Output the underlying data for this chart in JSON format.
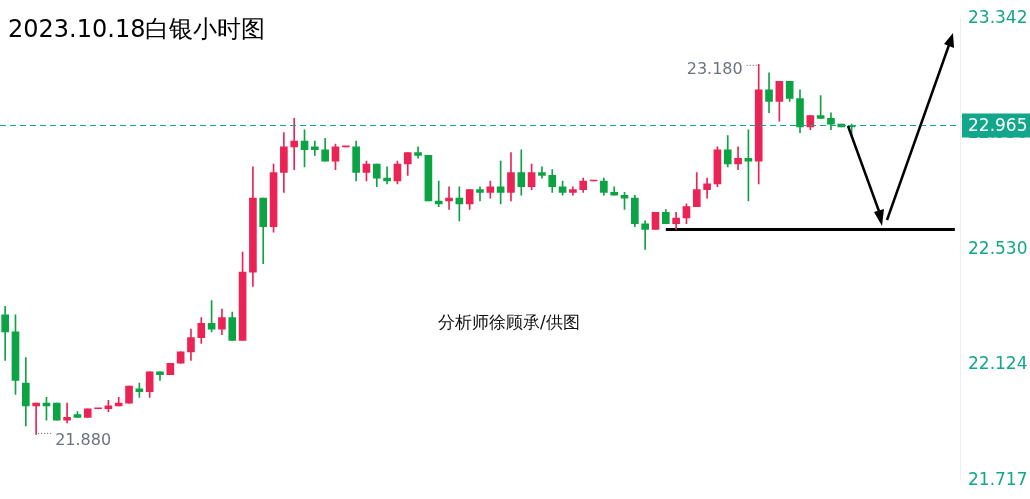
{
  "chart_data": {
    "type": "candlestick",
    "title": "2023.10.18白银小时图",
    "categories": [
      null,
      null,
      null,
      null,
      null,
      null,
      null,
      null,
      null,
      null,
      null,
      null,
      null,
      null,
      null,
      null,
      null,
      null,
      null,
      null,
      null,
      null,
      null,
      null,
      null,
      null,
      null,
      null,
      null,
      null,
      null,
      null,
      null,
      null,
      null,
      null,
      null,
      null,
      null,
      null,
      null,
      null,
      null,
      null,
      null,
      null,
      null,
      null,
      null,
      null,
      null,
      null,
      null,
      null,
      null,
      null,
      null,
      null,
      null,
      null,
      null,
      null,
      null,
      null,
      null,
      null,
      null,
      null,
      null,
      null,
      null,
      null,
      null,
      null,
      null,
      null,
      null,
      null,
      null,
      null,
      null,
      null,
      null,
      null,
      null,
      null,
      null,
      null,
      null,
      null,
      null,
      null,
      null
    ],
    "ohlc": [
      [
        22.3,
        22.33,
        22.14,
        22.24
      ],
      [
        22.24,
        22.3,
        22.02,
        22.07
      ],
      [
        22.06,
        22.15,
        21.91,
        21.98
      ],
      [
        21.98,
        21.99,
        21.88,
        21.99
      ],
      [
        21.99,
        22.01,
        21.93,
        21.98
      ],
      [
        21.99,
        21.99,
        21.93,
        21.93
      ],
      [
        21.93,
        21.99,
        21.92,
        21.94
      ],
      [
        21.95,
        21.96,
        21.94,
        21.94
      ],
      [
        21.94,
        21.97,
        21.94,
        21.97
      ],
      [
        21.97,
        21.97,
        21.97,
        21.97
      ],
      [
        21.97,
        22.0,
        21.96,
        21.98
      ],
      [
        21.98,
        22.01,
        21.98,
        21.99
      ],
      [
        21.99,
        22.05,
        21.99,
        22.05
      ],
      [
        22.04,
        22.06,
        22.01,
        22.03
      ],
      [
        22.03,
        22.1,
        22.01,
        22.1
      ],
      [
        22.1,
        22.1,
        22.07,
        22.09
      ],
      [
        22.09,
        22.13,
        22.09,
        22.13
      ],
      [
        22.13,
        22.17,
        22.13,
        22.17
      ],
      [
        22.17,
        22.25,
        22.14,
        22.22
      ],
      [
        22.22,
        22.29,
        22.2,
        22.27
      ],
      [
        22.27,
        22.35,
        22.24,
        22.25
      ],
      [
        22.25,
        22.32,
        22.23,
        22.29
      ],
      [
        22.29,
        22.31,
        22.21,
        22.21
      ],
      [
        22.21,
        22.52,
        22.21,
        22.45
      ],
      [
        22.45,
        22.82,
        22.4,
        22.71
      ],
      [
        22.71,
        22.71,
        22.48,
        22.61
      ],
      [
        22.61,
        22.83,
        22.59,
        22.8
      ],
      [
        22.8,
        22.94,
        22.73,
        22.89
      ],
      [
        22.89,
        22.99,
        22.81,
        22.91
      ],
      [
        22.91,
        22.95,
        22.82,
        22.88
      ],
      [
        22.89,
        22.91,
        22.86,
        22.88
      ],
      [
        22.88,
        22.92,
        22.84,
        22.84
      ],
      [
        22.84,
        22.9,
        22.81,
        22.89
      ],
      [
        22.89,
        22.89,
        22.89,
        22.89
      ],
      [
        22.89,
        22.91,
        22.77,
        22.8
      ],
      [
        22.8,
        22.84,
        22.77,
        22.83
      ],
      [
        22.83,
        22.83,
        22.75,
        22.78
      ],
      [
        22.78,
        22.82,
        22.76,
        22.77
      ],
      [
        22.77,
        22.84,
        22.76,
        22.83
      ],
      [
        22.83,
        22.87,
        22.79,
        22.87
      ],
      [
        22.87,
        22.89,
        22.85,
        22.86
      ],
      [
        22.86,
        22.86,
        22.7,
        22.7
      ],
      [
        22.7,
        22.77,
        22.68,
        22.69
      ],
      [
        22.7,
        22.75,
        22.67,
        22.71
      ],
      [
        22.71,
        22.75,
        22.63,
        22.69
      ],
      [
        22.69,
        22.74,
        22.67,
        22.74
      ],
      [
        22.74,
        22.75,
        22.7,
        22.73
      ],
      [
        22.73,
        22.77,
        22.71,
        22.75
      ],
      [
        22.75,
        22.84,
        22.69,
        22.73
      ],
      [
        22.73,
        22.87,
        22.7,
        22.8
      ],
      [
        22.8,
        22.88,
        22.72,
        22.75
      ],
      [
        22.75,
        22.83,
        22.74,
        22.8
      ],
      [
        22.8,
        22.82,
        22.78,
        22.79
      ],
      [
        22.79,
        22.81,
        22.73,
        22.75
      ],
      [
        22.75,
        22.77,
        22.72,
        22.73
      ],
      [
        22.73,
        22.75,
        22.72,
        22.74
      ],
      [
        22.74,
        22.78,
        22.73,
        22.77
      ],
      [
        22.77,
        22.77,
        22.77,
        22.77
      ],
      [
        22.77,
        22.78,
        22.72,
        22.73
      ],
      [
        22.73,
        22.75,
        22.72,
        22.72
      ],
      [
        22.72,
        22.73,
        22.67,
        22.71
      ],
      [
        22.71,
        22.72,
        22.61,
        22.62
      ],
      [
        22.62,
        22.63,
        22.53,
        22.6
      ],
      [
        22.6,
        22.66,
        22.6,
        22.66
      ],
      [
        22.66,
        22.67,
        22.62,
        22.62
      ],
      [
        22.62,
        22.66,
        22.6,
        22.64
      ],
      [
        22.64,
        22.69,
        22.62,
        22.68
      ],
      [
        22.68,
        22.8,
        22.68,
        22.74
      ],
      [
        22.74,
        22.78,
        22.71,
        22.76
      ],
      [
        22.76,
        22.89,
        22.75,
        22.88
      ],
      [
        22.88,
        22.93,
        22.82,
        22.83
      ],
      [
        22.83,
        22.89,
        22.81,
        22.85
      ],
      [
        22.85,
        22.95,
        22.7,
        22.84
      ],
      [
        22.84,
        23.18,
        22.76,
        23.09
      ],
      [
        23.09,
        23.15,
        23.01,
        23.05
      ],
      [
        23.05,
        23.12,
        22.98,
        23.12
      ],
      [
        23.12,
        23.12,
        23.05,
        23.06
      ],
      [
        23.06,
        23.09,
        22.94,
        22.96
      ],
      [
        22.96,
        23.0,
        22.95,
        23.0
      ],
      [
        23.0,
        23.07,
        22.99,
        22.99
      ],
      [
        22.99,
        23.01,
        22.95,
        22.97
      ],
      [
        22.97,
        22.97,
        22.96,
        22.96
      ],
      [
        22.96,
        22.97,
        22.93,
        22.965
      ],
      null,
      null,
      null,
      null,
      null,
      null,
      null,
      null,
      null,
      null
    ],
    "colors": [
      "#0ca345",
      "#0ca345",
      "#0ca345",
      "#eb2456",
      "#0ca345",
      "#0ca345",
      "#eb2456",
      "#0ca345",
      "#eb2456",
      "#eb2456",
      "#eb2456",
      "#eb2456",
      "#eb2456",
      "#0ca345",
      "#eb2456",
      "#0ca345",
      "#eb2456",
      "#eb2456",
      "#eb2456",
      "#eb2456",
      "#0ca345",
      "#eb2456",
      "#0ca345",
      "#eb2456",
      "#eb2456",
      "#0ca345",
      "#eb2456",
      "#eb2456",
      "#eb2456",
      "#0ca345",
      "#0ca345",
      "#0ca345",
      "#eb2456",
      "#eb2456",
      "#0ca345",
      "#eb2456",
      "#0ca345",
      "#0ca345",
      "#eb2456",
      "#eb2456",
      "#0ca345",
      "#0ca345",
      "#0ca345",
      "#eb2456",
      "#0ca345",
      "#eb2456",
      "#0ca345",
      "#eb2456",
      "#0ca345",
      "#eb2456",
      "#0ca345",
      "#eb2456",
      "#0ca345",
      "#0ca345",
      "#0ca345",
      "#eb2456",
      "#eb2456",
      "#eb2456",
      "#0ca345",
      "#0ca345",
      "#0ca345",
      "#0ca345",
      "#0ca345",
      "#eb2456",
      "#0ca345",
      "#eb2456",
      "#eb2456",
      "#eb2456",
      "#eb2456",
      "#eb2456",
      "#0ca345",
      "#eb2456",
      "#0ca345",
      "#eb2456",
      "#0ca345",
      "#eb2456",
      "#0ca345",
      "#0ca345",
      "#eb2456",
      "#0ca345",
      "#0ca345",
      "#0ca345",
      "#0ca345",
      null,
      null,
      null,
      null,
      null,
      null,
      null,
      null,
      null,
      null
    ],
    "series": [
      {
        "type": "line",
        "color": "#000000",
        "values": [
          null,
          null,
          null,
          null,
          null,
          null,
          null,
          null,
          null,
          null,
          null,
          null,
          null,
          null,
          null,
          null,
          null,
          null,
          null,
          null,
          null,
          null,
          null,
          null,
          null,
          null,
          null,
          null,
          null,
          null,
          null,
          null,
          null,
          null,
          null,
          null,
          null,
          null,
          null,
          null,
          null,
          null,
          null,
          null,
          null,
          null,
          null,
          null,
          null,
          null,
          null,
          null,
          null,
          null,
          null,
          null,
          null,
          null,
          null,
          null,
          null,
          null,
          null,
          null,
          22.6,
          22.6,
          22.6,
          22.6,
          22.6,
          22.6,
          22.6,
          22.6,
          22.6,
          22.6,
          22.6,
          22.6,
          22.6,
          22.6,
          22.6,
          22.6,
          22.6,
          22.6,
          22.6,
          22.6,
          22.6,
          22.6,
          22.6,
          22.6,
          22.6,
          22.6,
          22.6,
          22.6,
          22.6
        ]
      }
    ],
    "ylim": [
      21.717,
      23.342
    ],
    "yticks": [
      21.717,
      22.124,
      {
        "value": 22.53,
        "label": "22.530"
      },
      22.936,
      23.342
    ],
    "tick_labels": "y",
    "grid": false,
    "legend": false,
    "ref_lines": [
      {
        "axis": "y",
        "value": 22.965,
        "label": "22.965",
        "color": "#12a68b",
        "line_style": "dashed"
      }
    ],
    "annotations": [
      "23.180",
      "21.880",
      "分析师徐顾承/供图"
    ]
  }
}
